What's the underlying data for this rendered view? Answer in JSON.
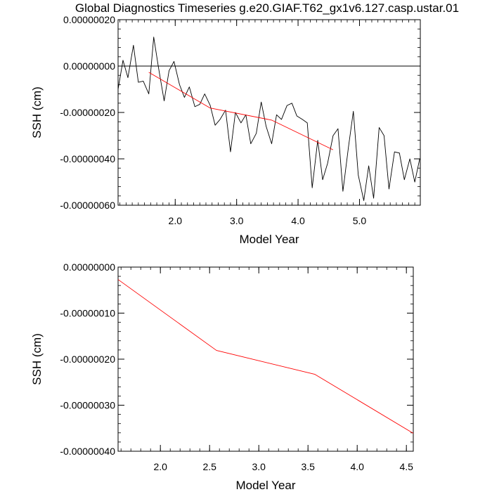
{
  "title": "Global Diagnostics Timeseries g.e20.GIAF.T62_gx1v6.127.casp.ustar.01",
  "chart_data": [
    {
      "type": "line",
      "xlabel": "Model Year",
      "ylabel": "SSH (cm)",
      "xlim": [
        1.07,
        5.99
      ],
      "ylim": [
        -6e-07,
        2e-07
      ],
      "xticks": [
        2.0,
        3.0,
        4.0,
        5.0
      ],
      "xtick_labels": [
        "2.0",
        "3.0",
        "4.0",
        "5.0"
      ],
      "yticks": [
        2e-07,
        0.0,
        -2e-07,
        -4e-07,
        -6e-07
      ],
      "ytick_labels": [
        "0.00000020",
        "0.00000000",
        "-0.00000020",
        "-0.00000040",
        "-0.00000060"
      ],
      "reference_line": 0.0,
      "series": [
        {
          "color": "#000000",
          "x": [
            1.07,
            1.15,
            1.23,
            1.32,
            1.4,
            1.48,
            1.57,
            1.65,
            1.73,
            1.82,
            1.9,
            1.98,
            2.07,
            2.15,
            2.23,
            2.32,
            2.4,
            2.48,
            2.57,
            2.65,
            2.73,
            2.82,
            2.9,
            2.98,
            3.07,
            3.15,
            3.23,
            3.32,
            3.4,
            3.48,
            3.57,
            3.65,
            3.73,
            3.82,
            3.9,
            3.98,
            4.07,
            4.15,
            4.23,
            4.32,
            4.4,
            4.48,
            4.57,
            4.65,
            4.73,
            4.82,
            4.9,
            4.98,
            5.07,
            5.15,
            5.23,
            5.32,
            5.4,
            5.48,
            5.57,
            5.65,
            5.73,
            5.82,
            5.9,
            5.98
          ],
          "y": [
            -1e-07,
            2.5e-08,
            -5e-08,
            9e-08,
            -7e-08,
            -6.5e-08,
            -1.2e-07,
            1.25e-07,
            -1e-08,
            -1.5e-07,
            -2e-08,
            2e-08,
            -8e-08,
            -1.35e-07,
            -9e-08,
            -1.75e-07,
            -1.65e-07,
            -1.2e-07,
            -1.7e-07,
            -2.55e-07,
            -2.3e-07,
            -1.9e-07,
            -3.7e-07,
            -2e-07,
            -2.45e-07,
            -2.1e-07,
            -3.35e-07,
            -2.9e-07,
            -1.55e-07,
            -2.6e-07,
            -3.35e-07,
            -2.1e-07,
            -2.3e-07,
            -1.7e-07,
            -1.6e-07,
            -2.15e-07,
            -2.3e-07,
            -2.45e-07,
            -5.25e-07,
            -3.2e-07,
            -4.9e-07,
            -4.2e-07,
            -3e-07,
            -2.7e-07,
            -5.4e-07,
            -3.5e-07,
            -1.95e-07,
            -4.7e-07,
            -5.8e-07,
            -4.3e-07,
            -5.7e-07,
            -2.65e-07,
            -3e-07,
            -5.3e-07,
            -3.7e-07,
            -3.75e-07,
            -4.9e-07,
            -4e-07,
            -5e-07,
            -4e-07
          ]
        },
        {
          "color": "#ff0000",
          "x": [
            1.57,
            2.57,
            3.57,
            4.57
          ],
          "y": [
            -2.7e-08,
            -1.81e-07,
            -2.33e-07,
            -3.61e-07
          ]
        }
      ]
    },
    {
      "type": "line",
      "xlabel": "Model Year",
      "ylabel": "SSH (cm)",
      "xlim": [
        1.57,
        4.57
      ],
      "ylim": [
        -4e-07,
        0.0
      ],
      "xticks": [
        2.0,
        2.5,
        3.0,
        3.5,
        4.0,
        4.5
      ],
      "xtick_labels": [
        "2.0",
        "2.5",
        "3.0",
        "3.5",
        "4.0",
        "4.5"
      ],
      "yticks": [
        0.0,
        -1e-07,
        -2e-07,
        -3e-07,
        -4e-07
      ],
      "ytick_labels": [
        "0.00000000",
        "-0.00000010",
        "-0.00000020",
        "-0.00000030",
        "-0.00000040"
      ],
      "series": [
        {
          "color": "#ff0000",
          "x": [
            1.57,
            2.57,
            3.57,
            4.57
          ],
          "y": [
            -2.7e-08,
            -1.81e-07,
            -2.33e-07,
            -3.61e-07
          ]
        }
      ]
    }
  ]
}
